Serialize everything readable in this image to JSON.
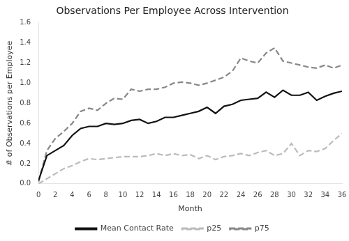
{
  "chart_data": {
    "type": "line",
    "title": "Observations Per Employee Across Intervention",
    "xlabel": "Month",
    "ylabel": "# of Observations per Employee",
    "x": [
      0,
      1,
      2,
      3,
      4,
      5,
      6,
      7,
      8,
      9,
      10,
      11,
      12,
      13,
      14,
      15,
      16,
      17,
      18,
      19,
      20,
      21,
      22,
      23,
      24,
      25,
      26,
      27,
      28,
      29,
      30,
      31,
      32,
      33,
      34,
      35,
      36
    ],
    "series": [
      {
        "name": "Mean Contact Rate",
        "color": "#111111",
        "line_style": "solid",
        "values": [
          0.03,
          0.28,
          0.33,
          0.38,
          0.48,
          0.55,
          0.57,
          0.57,
          0.6,
          0.59,
          0.6,
          0.63,
          0.64,
          0.6,
          0.62,
          0.66,
          0.66,
          0.68,
          0.7,
          0.72,
          0.76,
          0.7,
          0.77,
          0.79,
          0.83,
          0.84,
          0.85,
          0.91,
          0.86,
          0.93,
          0.88,
          0.88,
          0.91,
          0.83,
          0.87,
          0.9,
          0.92
        ]
      },
      {
        "name": "p25",
        "color": "#bbbbbb",
        "line_style": "dashed",
        "values": [
          0.0,
          0.05,
          0.1,
          0.15,
          0.18,
          0.22,
          0.25,
          0.24,
          0.25,
          0.26,
          0.27,
          0.27,
          0.27,
          0.28,
          0.3,
          0.28,
          0.3,
          0.28,
          0.29,
          0.25,
          0.28,
          0.24,
          0.27,
          0.28,
          0.3,
          0.28,
          0.31,
          0.33,
          0.28,
          0.3,
          0.4,
          0.28,
          0.33,
          0.32,
          0.35,
          0.43,
          0.5
        ]
      },
      {
        "name": "p75",
        "color": "#888888",
        "line_style": "dashed",
        "values": [
          0.02,
          0.33,
          0.45,
          0.52,
          0.6,
          0.72,
          0.75,
          0.73,
          0.8,
          0.85,
          0.84,
          0.94,
          0.92,
          0.94,
          0.94,
          0.96,
          1.0,
          1.01,
          1.0,
          0.98,
          1.0,
          1.03,
          1.06,
          1.12,
          1.25,
          1.22,
          1.2,
          1.3,
          1.35,
          1.22,
          1.2,
          1.18,
          1.16,
          1.15,
          1.18,
          1.15,
          1.18
        ]
      }
    ],
    "xlim": [
      0,
      36
    ],
    "ylim": [
      0,
      1.6
    ],
    "xticks": [
      0,
      2,
      4,
      6,
      8,
      10,
      12,
      14,
      16,
      18,
      20,
      22,
      24,
      26,
      28,
      30,
      32,
      34,
      36
    ],
    "yticks": [
      {
        "value": 0,
        "label": "0.0"
      },
      0.2,
      0.4,
      0.6,
      0.8,
      {
        "value": 1.0,
        "label": "1.0"
      },
      1.2,
      1.4,
      1.6
    ],
    "grid": false,
    "legend": "bottom"
  }
}
